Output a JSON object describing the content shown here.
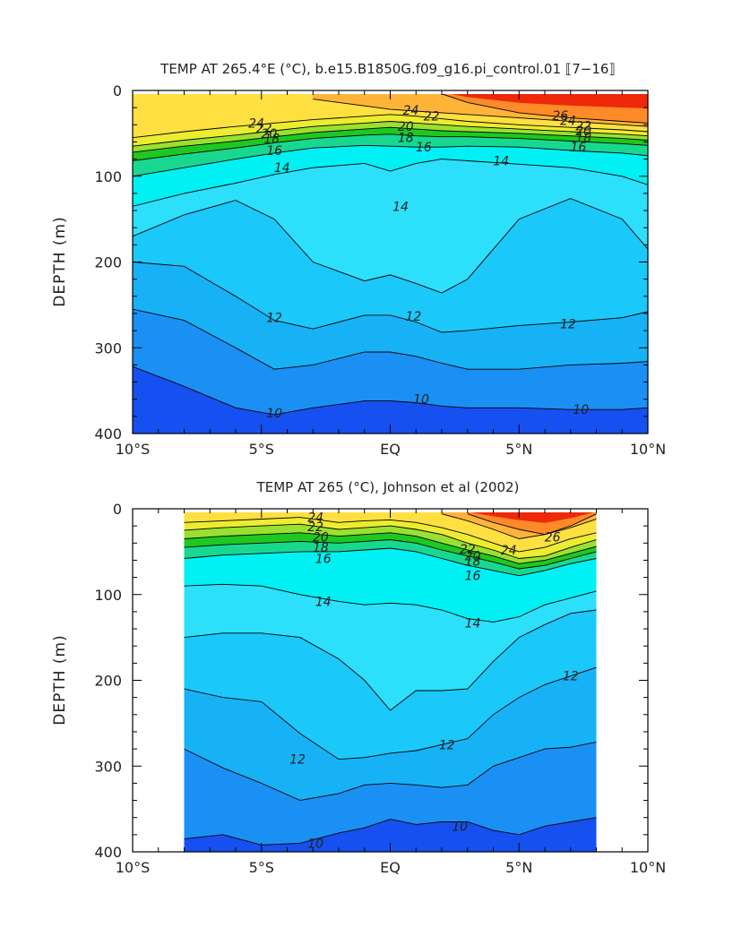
{
  "chart_data": [
    {
      "type": "heatmap",
      "title": "TEMP AT 265.4°E (°C), b.e15.B1850G.f09_g16.pi_control.01 ⟦7−16⟧",
      "xlabel": "",
      "ylabel": "DEPTH (m)",
      "xlim": [
        -10,
        10
      ],
      "ylim": [
        400,
        0
      ],
      "x_tick_values": [
        -10,
        -5,
        0,
        5,
        10
      ],
      "x_ticks": [
        "10°S",
        "5°S",
        "EQ",
        "5°N",
        "10°N"
      ],
      "y_tick_values": [
        0,
        100,
        200,
        300,
        400
      ],
      "y_ticks": [
        "0",
        "100",
        "200",
        "300",
        "400"
      ],
      "data_xrange": [
        -10,
        10
      ],
      "contour_labels": [
        {
          "text": "24",
          "x": -5.2,
          "y": 38
        },
        {
          "text": "22",
          "x": -4.9,
          "y": 44
        },
        {
          "text": "20",
          "x": -4.7,
          "y": 50
        },
        {
          "text": "18",
          "x": -4.6,
          "y": 56
        },
        {
          "text": "16",
          "x": -4.5,
          "y": 70
        },
        {
          "text": "14",
          "x": -4.2,
          "y": 90
        },
        {
          "text": "24",
          "x": 0.8,
          "y": 23
        },
        {
          "text": "22",
          "x": 1.6,
          "y": 30
        },
        {
          "text": "20",
          "x": 0.6,
          "y": 42
        },
        {
          "text": "18",
          "x": 0.6,
          "y": 55
        },
        {
          "text": "16",
          "x": 1.3,
          "y": 66
        },
        {
          "text": "14",
          "x": 0.4,
          "y": 135
        },
        {
          "text": "14",
          "x": 4.3,
          "y": 82
        },
        {
          "text": "26",
          "x": 6.6,
          "y": 29
        },
        {
          "text": "24",
          "x": 6.9,
          "y": 35
        },
        {
          "text": "22",
          "x": 7.5,
          "y": 41
        },
        {
          "text": "20",
          "x": 7.5,
          "y": 47
        },
        {
          "text": "18",
          "x": 7.5,
          "y": 55
        },
        {
          "text": "16",
          "x": 7.3,
          "y": 66
        },
        {
          "text": "12",
          "x": -4.5,
          "y": 265
        },
        {
          "text": "12",
          "x": 0.9,
          "y": 263
        },
        {
          "text": "12",
          "x": 6.9,
          "y": 272
        },
        {
          "text": "10",
          "x": -4.5,
          "y": 376
        },
        {
          "text": "10",
          "x": 1.2,
          "y": 360
        },
        {
          "text": "10",
          "x": 7.4,
          "y": 372
        }
      ],
      "isotherm_depths": {
        "x": [
          -10,
          -8,
          -6,
          -4.5,
          -3,
          -1,
          0,
          1,
          2,
          3,
          5,
          7,
          9,
          10
        ],
        "t26": [
          null,
          null,
          null,
          null,
          null,
          null,
          null,
          null,
          4,
          14,
          26,
          32,
          36,
          38
        ],
        "t25": [
          null,
          null,
          null,
          null,
          10,
          18,
          22,
          24,
          26,
          28,
          32,
          36,
          40,
          42
        ],
        "t24": [
          55,
          48,
          42,
          38,
          34,
          30,
          28,
          30,
          33,
          36,
          40,
          43,
          46,
          48
        ],
        "t22": [
          65,
          58,
          52,
          47,
          42,
          38,
          36,
          38,
          40,
          42,
          45,
          48,
          51,
          53
        ],
        "t20": [
          72,
          65,
          59,
          54,
          49,
          45,
          43,
          45,
          47,
          48,
          50,
          53,
          56,
          58
        ],
        "t18": [
          82,
          74,
          67,
          61,
          56,
          52,
          51,
          53,
          54,
          54,
          56,
          59,
          62,
          64
        ],
        "t16": [
          100,
          90,
          80,
          73,
          67,
          64,
          65,
          66,
          66,
          65,
          66,
          70,
          73,
          76
        ],
        "t14": [
          135,
          120,
          108,
          98,
          90,
          85,
          94,
          85,
          80,
          82,
          86,
          90,
          100,
          110
        ],
        "t13": [
          170,
          145,
          128,
          150,
          200,
          222,
          215,
          225,
          236,
          220,
          150,
          126,
          150,
          185
        ],
        "t12": [
          200,
          205,
          240,
          268,
          278,
          262,
          262,
          270,
          282,
          280,
          274,
          270,
          265,
          258
        ],
        "t11": [
          255,
          268,
          300,
          325,
          320,
          305,
          305,
          310,
          318,
          325,
          325,
          320,
          318,
          316
        ],
        "t10": [
          322,
          345,
          370,
          378,
          370,
          362,
          362,
          364,
          368,
          370,
          370,
          372,
          372,
          370
        ]
      }
    },
    {
      "type": "heatmap",
      "title": "TEMP AT 265 (°C), Johnson et al (2002)",
      "xlabel": "",
      "ylabel": "DEPTH (m)",
      "xlim": [
        -10,
        10
      ],
      "ylim": [
        400,
        0
      ],
      "x_tick_values": [
        -10,
        -5,
        0,
        5,
        10
      ],
      "x_ticks": [
        "10°S",
        "5°S",
        "EQ",
        "5°N",
        "10°N"
      ],
      "y_tick_values": [
        0,
        100,
        200,
        300,
        400
      ],
      "y_ticks": [
        "0",
        "100",
        "200",
        "300",
        "400"
      ],
      "data_xrange": [
        -8,
        8
      ],
      "contour_labels": [
        {
          "text": "24",
          "x": -2.9,
          "y": 10
        },
        {
          "text": "22",
          "x": -2.9,
          "y": 21
        },
        {
          "text": "20",
          "x": -2.7,
          "y": 33
        },
        {
          "text": "18",
          "x": -2.7,
          "y": 45
        },
        {
          "text": "16",
          "x": -2.6,
          "y": 58
        },
        {
          "text": "14",
          "x": -2.6,
          "y": 108
        },
        {
          "text": "14",
          "x": 3.2,
          "y": 133
        },
        {
          "text": "22",
          "x": 3.0,
          "y": 47
        },
        {
          "text": "20",
          "x": 3.2,
          "y": 55
        },
        {
          "text": "18",
          "x": 3.2,
          "y": 61
        },
        {
          "text": "16",
          "x": 3.2,
          "y": 78
        },
        {
          "text": "24",
          "x": 4.6,
          "y": 48
        },
        {
          "text": "26",
          "x": 6.3,
          "y": 33
        },
        {
          "text": "12",
          "x": 7.0,
          "y": 195
        },
        {
          "text": "12",
          "x": 2.2,
          "y": 275
        },
        {
          "text": "12",
          "x": -3.6,
          "y": 292
        },
        {
          "text": "10",
          "x": -2.9,
          "y": 390
        },
        {
          "text": "10",
          "x": 2.7,
          "y": 370
        }
      ],
      "isotherm_depths": {
        "x": [
          -8,
          -6.5,
          -5,
          -3.5,
          -2,
          -1,
          0,
          1,
          2,
          3,
          4,
          5,
          6,
          7,
          8
        ],
        "t26": [
          null,
          null,
          null,
          null,
          null,
          null,
          null,
          null,
          null,
          6,
          16,
          24,
          30,
          20,
          6
        ],
        "t25": [
          null,
          null,
          null,
          null,
          null,
          null,
          null,
          null,
          6,
          14,
          24,
          35,
          30,
          22,
          12
        ],
        "t24": [
          16,
          14,
          12,
          10,
          16,
          14,
          13,
          16,
          22,
          30,
          40,
          50,
          45,
          35,
          28
        ],
        "t22": [
          25,
          22,
          20,
          18,
          24,
          22,
          20,
          24,
          30,
          40,
          48,
          58,
          55,
          45,
          36
        ],
        "t20": [
          35,
          32,
          30,
          28,
          32,
          30,
          28,
          32,
          40,
          48,
          55,
          64,
          60,
          52,
          44
        ],
        "t18": [
          45,
          42,
          40,
          38,
          40,
          38,
          36,
          40,
          48,
          55,
          62,
          70,
          66,
          58,
          50
        ],
        "t16": [
          58,
          54,
          52,
          50,
          50,
          48,
          46,
          50,
          58,
          66,
          72,
          78,
          72,
          64,
          58
        ],
        "t14": [
          90,
          88,
          90,
          100,
          108,
          112,
          110,
          112,
          118,
          128,
          132,
          126,
          112,
          104,
          96
        ],
        "t13": [
          150,
          145,
          145,
          150,
          175,
          200,
          235,
          212,
          212,
          210,
          178,
          150,
          135,
          122,
          118
        ],
        "t12": [
          210,
          220,
          225,
          262,
          292,
          290,
          285,
          282,
          275,
          268,
          240,
          220,
          205,
          195,
          185
        ],
        "t11": [
          280,
          302,
          320,
          340,
          332,
          322,
          320,
          322,
          325,
          322,
          300,
          290,
          280,
          278,
          272
        ],
        "t10": [
          385,
          380,
          392,
          390,
          378,
          372,
          362,
          368,
          365,
          365,
          375,
          380,
          370,
          365,
          360
        ]
      }
    }
  ],
  "colors": {
    "c9": "#1750f0",
    "c10": "#1a90f4",
    "c11": "#17b2f6",
    "c12": "#1ac8fa",
    "c13": "#2ce0fb",
    "c14": "#00f0f3",
    "c16": "#18d890",
    "c17": "#1ec820",
    "c18": "#9ae030",
    "c19": "#ecec30",
    "c21": "#ffe040",
    "c23": "#ffb438",
    "c25": "#ff8a28",
    "c26": "#ff5a10",
    "c27": "#ee2808"
  }
}
